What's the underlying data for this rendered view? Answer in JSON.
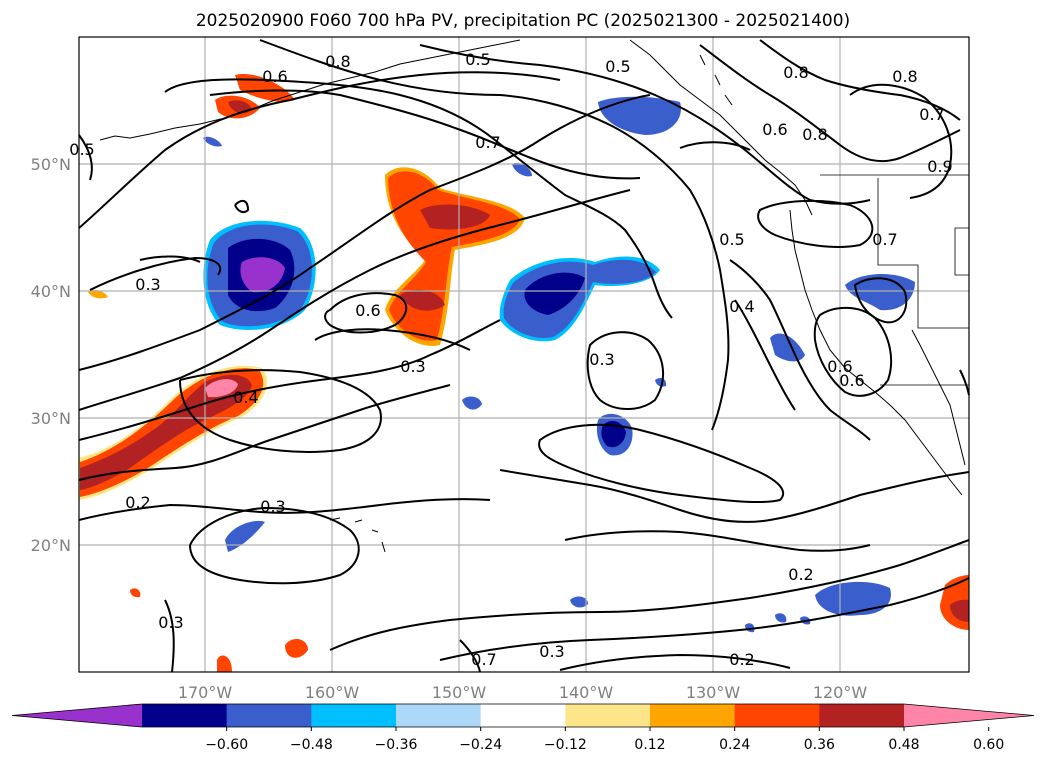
{
  "title": "2025020900 F060 700 hPa PV, precipitation PC (2025021300 - 2025021400)",
  "map": {
    "lon_labels": [
      "170°W",
      "160°W",
      "150°W",
      "140°W",
      "130°W",
      "120°W"
    ],
    "lat_labels": [
      "50°N",
      "40°N",
      "30°N",
      "20°N"
    ],
    "contour_labels": [
      "0.6",
      "0.8",
      "0.5",
      "0.5",
      "0.8",
      "0.8",
      "0.7",
      "0.6",
      "0.8",
      "0.7",
      "0.9",
      "0.5",
      "0.5",
      "0.7",
      "0.4",
      "0.3",
      "0.6",
      "0.3",
      "0.3",
      "0.4",
      "0.2",
      "0.3",
      "0.6",
      "0.6",
      "0.2",
      "0.3",
      "0.3",
      "0.2",
      "0.7"
    ]
  },
  "colorbar": {
    "tick_labels": [
      "−0.60",
      "−0.48",
      "−0.36",
      "−0.24",
      "−0.12",
      "0.12",
      "0.24",
      "0.36",
      "0.48",
      "0.60"
    ],
    "colors": [
      "#9932cc",
      "#00008b",
      "#3a5fcd",
      "#00bfff",
      "#add8f7",
      "#ffffff",
      "#fde68a",
      "#ffa500",
      "#ff4500",
      "#b22222",
      "#ff85a8"
    ]
  }
}
